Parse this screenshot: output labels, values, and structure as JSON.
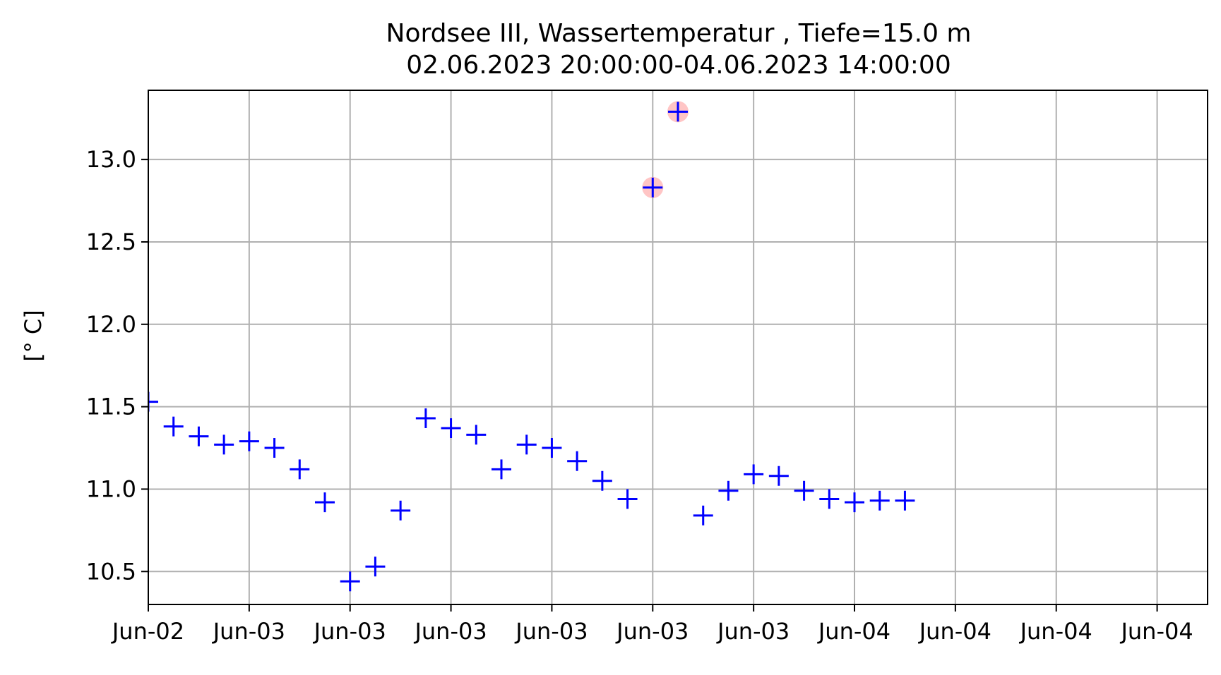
{
  "chart_data": {
    "type": "scatter",
    "title": "Nordsee III, Wassertemperatur , Tiefe=15.0 m",
    "subtitle": "02.06.2023 20:00:00-04.06.2023 14:00:00",
    "xlabel": "",
    "ylabel": "[° C]",
    "grid": true,
    "x_tick_labels": [
      "Jun-02",
      "Jun-03",
      "Jun-03",
      "Jun-03",
      "Jun-03",
      "Jun-03",
      "Jun-03",
      "Jun-04",
      "Jun-04",
      "Jun-04",
      "Jun-04"
    ],
    "x_ticks_hours": [
      20,
      24,
      28,
      32,
      36,
      40,
      44,
      48,
      52,
      56,
      60
    ],
    "xlim_hours": [
      20,
      62
    ],
    "y_ticks": [
      10.5,
      11.0,
      11.5,
      12.0,
      12.5,
      13.0
    ],
    "ylim": [
      10.3,
      13.42
    ],
    "series": [
      {
        "marker": "+",
        "color": "#0000ff",
        "points": [
          {
            "x": 20,
            "y": 11.53
          },
          {
            "x": 21,
            "y": 11.38
          },
          {
            "x": 22,
            "y": 11.32
          },
          {
            "x": 23,
            "y": 11.27
          },
          {
            "x": 24,
            "y": 11.29
          },
          {
            "x": 25,
            "y": 11.25
          },
          {
            "x": 26,
            "y": 11.12
          },
          {
            "x": 27,
            "y": 10.92
          },
          {
            "x": 28,
            "y": 10.44
          },
          {
            "x": 29,
            "y": 10.53
          },
          {
            "x": 30,
            "y": 10.87
          },
          {
            "x": 31,
            "y": 11.43
          },
          {
            "x": 32,
            "y": 11.37
          },
          {
            "x": 33,
            "y": 11.33
          },
          {
            "x": 34,
            "y": 11.12
          },
          {
            "x": 35,
            "y": 11.27
          },
          {
            "x": 36,
            "y": 11.25
          },
          {
            "x": 37,
            "y": 11.17
          },
          {
            "x": 38,
            "y": 11.05
          },
          {
            "x": 39,
            "y": 10.94
          },
          {
            "x": 40,
            "y": 12.83
          },
          {
            "x": 41,
            "y": 13.29
          },
          {
            "x": 42,
            "y": 10.84
          },
          {
            "x": 43,
            "y": 10.99
          },
          {
            "x": 44,
            "y": 11.09
          },
          {
            "x": 45,
            "y": 11.08
          },
          {
            "x": 46,
            "y": 10.99
          },
          {
            "x": 47,
            "y": 10.94
          },
          {
            "x": 48,
            "y": 10.92
          },
          {
            "x": 49,
            "y": 10.93
          },
          {
            "x": 50,
            "y": 10.93
          }
        ]
      }
    ],
    "flagged_points": [
      {
        "x": 40,
        "y": 12.83
      },
      {
        "x": 41,
        "y": 13.29
      }
    ],
    "flag_color": "#ffb6b6"
  }
}
